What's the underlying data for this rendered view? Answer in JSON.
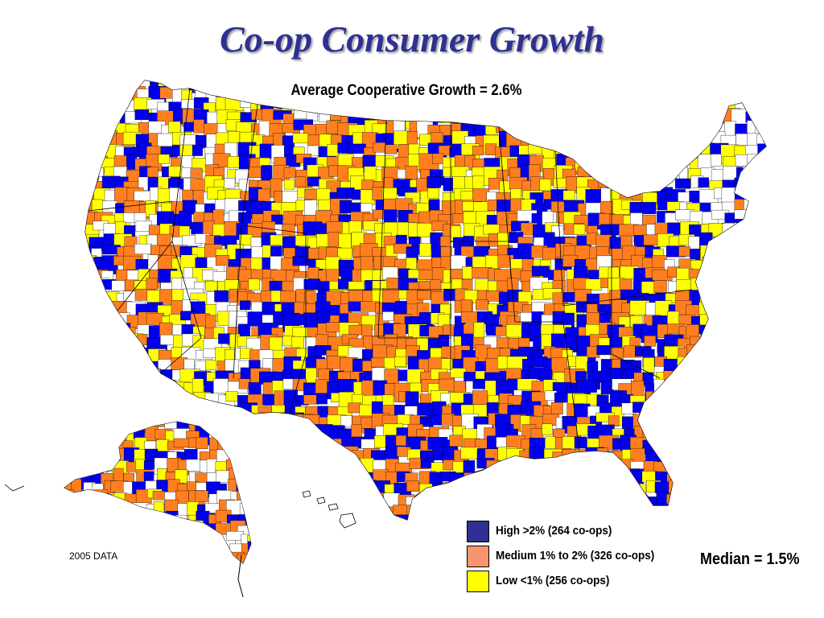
{
  "title": "Co-op Consumer Growth",
  "subtitle": "Average Cooperative Growth = 2.6%",
  "legend": {
    "items": [
      {
        "label": "High  >2% (264 co-ops)",
        "color": "#2e3192"
      },
      {
        "label": "Medium 1% to 2% (326 co-ops)",
        "color": "#f7966e"
      },
      {
        "label": "Low  <1% (256 co-ops)",
        "color": "#ffff00"
      }
    ]
  },
  "median": "Median = 1.5%",
  "source": "2005 DATA",
  "map_colors": {
    "high": "#0000ee",
    "medium": "#ff7f1f",
    "low": "#ffff00",
    "no_data": "#ffe0b0",
    "border": "#000000"
  }
}
